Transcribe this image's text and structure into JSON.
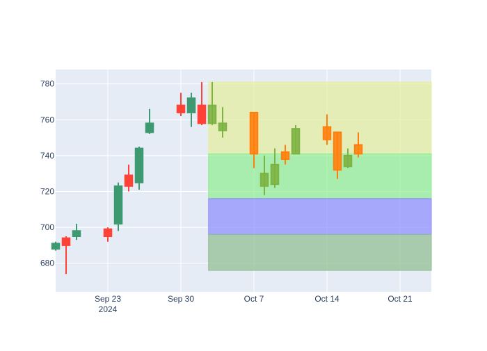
{
  "chart_data": {
    "type": "candlestick",
    "title": "",
    "xlabel": "",
    "ylabel": "",
    "ylim": [
      664,
      788
    ],
    "grid": true,
    "legend": "none",
    "colors": {
      "plot_bg": "#e5ecf6",
      "grid": "#ffffff",
      "increasing": "#3d9970",
      "decreasing": "#ff4136",
      "increasing_alt": "#7cb342",
      "decreasing_alt": "#ff7f0e",
      "increasing_alt_fill": "#2bb673",
      "band_yellow": "#e6ee9c",
      "band_green": "#90ee90",
      "band_blue": "#8c8cff",
      "band_gray": "#8fbc8f"
    },
    "x_axis": {
      "range": [
        "2024-09-18",
        "2024-10-24"
      ],
      "ticks": [
        {
          "date": "2024-09-23",
          "label": "Sep 23",
          "sublabel": "2024"
        },
        {
          "date": "2024-09-30",
          "label": "Sep 30",
          "sublabel": ""
        },
        {
          "date": "2024-10-07",
          "label": "Oct 7",
          "sublabel": ""
        },
        {
          "date": "2024-10-14",
          "label": "Oct 14",
          "sublabel": ""
        },
        {
          "date": "2024-10-21",
          "label": "Oct 21",
          "sublabel": ""
        }
      ]
    },
    "y_axis": {
      "ticks": [
        680,
        700,
        720,
        740,
        760,
        780
      ]
    },
    "bands": [
      {
        "x0": "2024-10-03",
        "x1": "2024-10-24",
        "y0": 741,
        "y1": 781,
        "color": "band_yellow"
      },
      {
        "x0": "2024-10-03",
        "x1": "2024-10-24",
        "y0": 716,
        "y1": 741,
        "color": "band_green"
      },
      {
        "x0": "2024-10-03",
        "x1": "2024-10-24",
        "y0": 696,
        "y1": 716,
        "color": "band_blue"
      },
      {
        "x0": "2024-10-03",
        "x1": "2024-10-24",
        "y0": 676,
        "y1": 696,
        "color": "band_gray"
      }
    ],
    "series": [
      {
        "style": "main",
        "data": [
          {
            "date": "2024-09-18",
            "open": 688,
            "high": 692,
            "low": 687,
            "close": 691
          },
          {
            "date": "2024-09-19",
            "open": 694,
            "high": 695,
            "low": 674,
            "close": 690
          },
          {
            "date": "2024-09-20",
            "open": 695,
            "high": 702,
            "low": 693,
            "close": 698
          },
          {
            "date": "2024-09-23",
            "open": 699,
            "high": 700,
            "low": 692,
            "close": 695
          },
          {
            "date": "2024-09-24",
            "open": 702,
            "high": 725,
            "low": 698,
            "close": 723
          },
          {
            "date": "2024-09-25",
            "open": 729,
            "high": 735,
            "low": 720,
            "close": 723
          },
          {
            "date": "2024-09-26",
            "open": 725,
            "high": 745,
            "low": 721,
            "close": 744
          },
          {
            "date": "2024-09-27",
            "open": 753,
            "high": 766,
            "low": 752,
            "close": 758
          },
          {
            "date": "2024-09-30",
            "open": 768,
            "high": 775,
            "low": 762,
            "close": 764
          },
          {
            "date": "2024-10-01",
            "open": 764,
            "high": 775,
            "low": 756,
            "close": 772
          },
          {
            "date": "2024-10-02",
            "open": 768,
            "high": 781,
            "low": 757,
            "close": 758
          }
        ]
      },
      {
        "style": "alt",
        "data": [
          {
            "date": "2024-10-03",
            "open": 758,
            "high": 781,
            "low": 757,
            "close": 768
          },
          {
            "date": "2024-10-04",
            "open": 754,
            "high": 767,
            "low": 750,
            "close": 758
          },
          {
            "date": "2024-10-07",
            "open": 764,
            "high": 764,
            "low": 733,
            "close": 741
          },
          {
            "date": "2024-10-08",
            "open": 723,
            "high": 740,
            "low": 718,
            "close": 730
          },
          {
            "date": "2024-10-09",
            "open": 724,
            "high": 744,
            "low": 722,
            "close": 735
          },
          {
            "date": "2024-10-10",
            "open": 742,
            "high": 746,
            "low": 735,
            "close": 738
          },
          {
            "date": "2024-10-11",
            "open": 741,
            "high": 757,
            "low": 741,
            "close": 755
          },
          {
            "date": "2024-10-14",
            "open": 756,
            "high": 763,
            "low": 746,
            "close": 749
          },
          {
            "date": "2024-10-15",
            "open": 753,
            "high": 753,
            "low": 727,
            "close": 732
          },
          {
            "date": "2024-10-16",
            "open": 734,
            "high": 744,
            "low": 733,
            "close": 740
          },
          {
            "date": "2024-10-17",
            "open": 746,
            "high": 753,
            "low": 739,
            "close": 741
          }
        ]
      }
    ]
  }
}
